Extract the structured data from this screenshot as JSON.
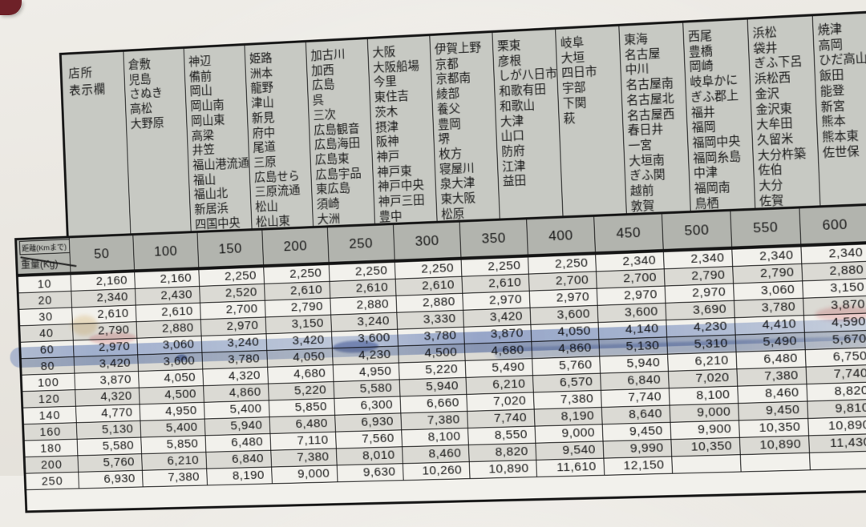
{
  "labels": {
    "office_line1": "店所",
    "office_line2": "表示欄",
    "distance": "距離(Kmまで)",
    "weight": "重量(Kg)"
  },
  "colors": {
    "places_bg": "#c7c9c3",
    "header_bg": "#b2b4ae",
    "row_light": "#f2f1ec",
    "row_dark": "#dbdad4",
    "grid_line": "#151515",
    "highlight_marker_blue": "#5a7dc4",
    "corner_mark_red": "#6e2128",
    "paper": "#eae7e1"
  },
  "chart_data": {
    "type": "table",
    "distance_columns_km": [
      "50",
      "100",
      "150",
      "200",
      "250",
      "300",
      "350",
      "400",
      "450",
      "500",
      "550",
      "600"
    ],
    "station_groups": [
      {
        "distance_km": "50",
        "stations": [
          "倉敷",
          "児島",
          "さぬき",
          "高松",
          "大野原"
        ]
      },
      {
        "distance_km": "100",
        "stations": [
          "神辺",
          "備前",
          "岡山",
          "岡山南",
          "岡山東",
          "高梁",
          "井笠",
          "福山港流通",
          "福山",
          "福山北",
          "新居浜",
          "四国中央"
        ]
      },
      {
        "distance_km": "150",
        "stations": [
          "姫路",
          "洲本",
          "龍野",
          "津山",
          "新見",
          "府中",
          "尾道",
          "三原",
          "広島せら",
          "三原流通",
          "松山",
          "松山東"
        ]
      },
      {
        "distance_km": "200",
        "stations": [
          "加古川",
          "加西",
          "広島",
          "呉",
          "三次",
          "広島観音",
          "広島海田",
          "広島東",
          "広島宇品",
          "東広島",
          "須崎",
          "大洲"
        ]
      },
      {
        "distance_km": "250",
        "stations": [
          "大阪",
          "大阪船場",
          "今里",
          "東住吉",
          "茨木",
          "摂津",
          "阪神",
          "神戸",
          "神戸東",
          "神戸中央",
          "神戸三田",
          "豊中"
        ]
      },
      {
        "distance_km": "300",
        "stations": [
          "伊賀上野",
          "京都",
          "京都南",
          "綾部",
          "養父",
          "豊岡",
          "堺",
          "枚方",
          "寝屋川",
          "泉大津",
          "東大阪",
          "松原"
        ]
      },
      {
        "distance_km": "350",
        "stations": [
          "栗東",
          "彦根",
          "しが八日市",
          "和歌有田",
          "和歌山",
          "大津",
          "山口",
          "防府",
          "江津",
          "益田"
        ]
      },
      {
        "distance_km": "400",
        "stations": [
          "岐阜",
          "大垣",
          "四日市",
          "宇部",
          "下関",
          "萩"
        ]
      },
      {
        "distance_km": "450",
        "stations": [
          "東海",
          "名古屋",
          "中川",
          "名古屋南",
          "名古屋北",
          "名古屋西",
          "春日井",
          "一宮",
          "大垣南",
          "ぎふ関",
          "越前",
          "敦賀"
        ]
      },
      {
        "distance_km": "500",
        "stations": [
          "西尾",
          "豊橋",
          "岡崎",
          "岐阜かに",
          "ぎふ郡上",
          "福井",
          "福岡",
          "福岡中央",
          "福岡糸島",
          "中津",
          "福岡南",
          "鳥栖"
        ]
      },
      {
        "distance_km": "550",
        "stations": [
          "浜松",
          "袋井",
          "ぎふ下呂",
          "浜松西",
          "金沢",
          "金沢東",
          "大牟田",
          "久留米",
          "大分杵築",
          "佐伯",
          "大分",
          "佐賀"
        ]
      },
      {
        "distance_km": "600",
        "stations": [
          "焼津",
          "高岡",
          "ひだ高山",
          "飯田",
          "能登",
          "新宮",
          "熊本",
          "熊本東",
          "佐世保"
        ]
      }
    ],
    "fare_rows": [
      {
        "weight_kg": "10",
        "fares": [
          "2,160",
          "2,160",
          "2,250",
          "2,250",
          "2,250",
          "2,250",
          "2,250",
          "2,250",
          "2,340",
          "2,340",
          "2,340",
          "2,340"
        ]
      },
      {
        "weight_kg": "20",
        "fares": [
          "2,340",
          "2,430",
          "2,520",
          "2,610",
          "2,610",
          "2,610",
          "2,610",
          "2,700",
          "2,700",
          "2,790",
          "2,790",
          "2,880"
        ]
      },
      {
        "weight_kg": "30",
        "fares": [
          "2,610",
          "2,610",
          "2,700",
          "2,790",
          "2,880",
          "2,880",
          "2,970",
          "2,970",
          "2,970",
          "2,970",
          "3,060",
          "3,150"
        ]
      },
      {
        "weight_kg": "40",
        "fares": [
          "2,790",
          "2,880",
          "2,970",
          "3,150",
          "3,240",
          "3,330",
          "3,420",
          "3,600",
          "3,600",
          "3,690",
          "3,780",
          "3,870"
        ]
      },
      {
        "weight_kg": "60",
        "fares": [
          "2,970",
          "3,060",
          "3,240",
          "3,420",
          "3,600",
          "3,780",
          "3,870",
          "4,050",
          "4,140",
          "4,230",
          "4,410",
          "4,590"
        ]
      },
      {
        "weight_kg": "80",
        "fares": [
          "3,420",
          "3,600",
          "3,780",
          "4,050",
          "4,230",
          "4,500",
          "4,680",
          "4,860",
          "5,130",
          "5,310",
          "5,490",
          "5,670"
        ]
      },
      {
        "weight_kg": "100",
        "fares": [
          "3,870",
          "4,050",
          "4,320",
          "4,680",
          "4,950",
          "5,220",
          "5,490",
          "5,760",
          "5,940",
          "6,210",
          "6,480",
          "6,750"
        ]
      },
      {
        "weight_kg": "120",
        "fares": [
          "4,320",
          "4,500",
          "4,860",
          "5,220",
          "5,580",
          "5,940",
          "6,210",
          "6,570",
          "6,840",
          "7,020",
          "7,380",
          "7,740"
        ]
      },
      {
        "weight_kg": "140",
        "fares": [
          "4,770",
          "4,950",
          "5,400",
          "5,850",
          "6,300",
          "6,660",
          "7,020",
          "7,380",
          "7,740",
          "8,100",
          "8,460",
          "8,820"
        ]
      },
      {
        "weight_kg": "160",
        "fares": [
          "5,130",
          "5,400",
          "5,940",
          "6,480",
          "6,930",
          "7,380",
          "7,740",
          "8,190",
          "8,640",
          "9,000",
          "9,450",
          "9,810"
        ]
      },
      {
        "weight_kg": "180",
        "fares": [
          "5,580",
          "5,850",
          "6,480",
          "7,110",
          "7,560",
          "8,100",
          "8,550",
          "9,000",
          "9,450",
          "9,900",
          "10,350",
          "10,890"
        ]
      },
      {
        "weight_kg": "200",
        "fares": [
          "5,760",
          "6,210",
          "6,840",
          "7,380",
          "8,010",
          "8,460",
          "8,820",
          "9,540",
          "9,990",
          "10,350",
          "10,890",
          "11,430"
        ]
      },
      {
        "weight_kg": "250",
        "fares": [
          "6,930",
          "7,380",
          "8,190",
          "9,000",
          "9,630",
          "10,260",
          "10,890",
          "11,610",
          "12,150",
          "",
          "",
          ""
        ]
      }
    ],
    "highlighted_weight_row": "80",
    "partial_next_row_visible": true,
    "grid": true,
    "legend_position": "none"
  }
}
